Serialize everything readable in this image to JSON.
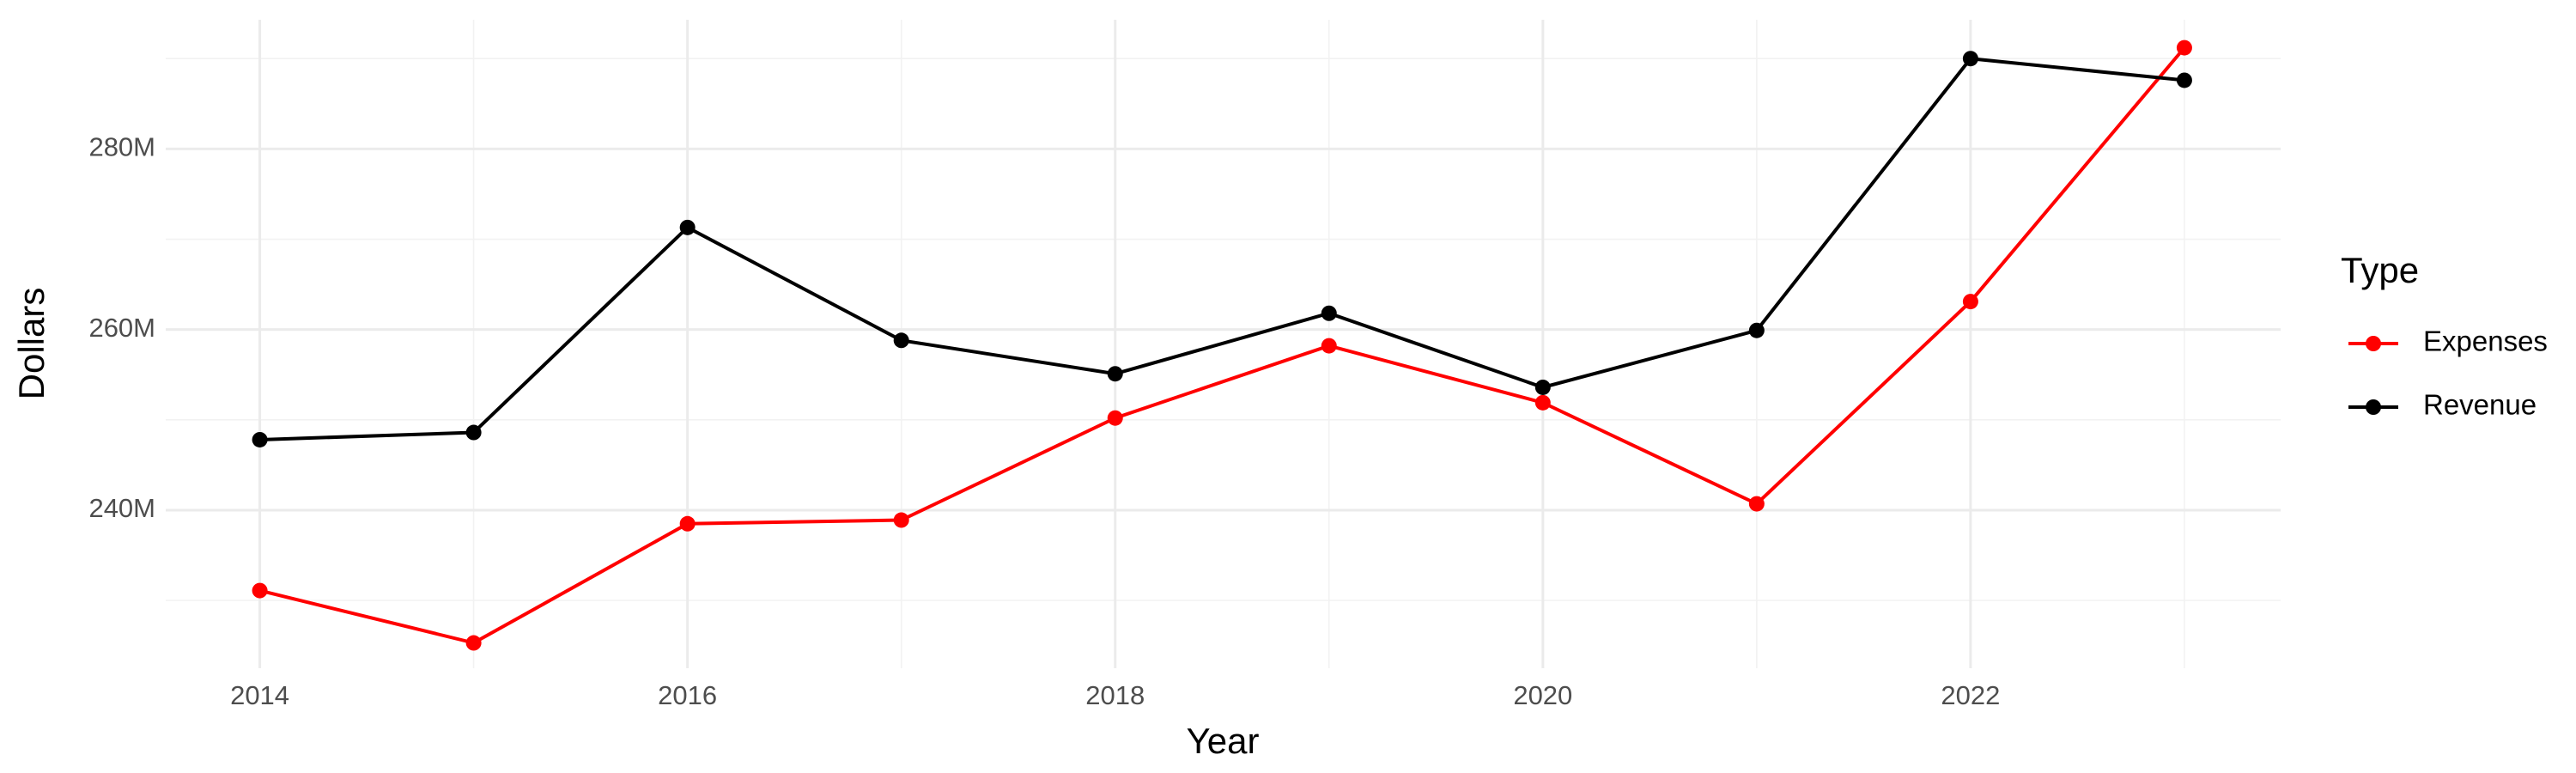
{
  "chart_data": {
    "type": "line",
    "x_label": "Year",
    "y_label": "Dollars",
    "x": [
      2014,
      2015,
      2016,
      2017,
      2018,
      2019,
      2020,
      2021,
      2022,
      2023
    ],
    "series": [
      {
        "name": "Expenses",
        "color": "#ff0000",
        "values": [
          231100000,
          225300000,
          238500000,
          238900000,
          250200000,
          258200000,
          251900000,
          240700000,
          263100000,
          291200000
        ]
      },
      {
        "name": "Revenue",
        "color": "#000000",
        "values": [
          247800000,
          248600000,
          271300000,
          258800000,
          255100000,
          261800000,
          253600000,
          259900000,
          290000000,
          287600000
        ]
      }
    ],
    "xlim": [
      2013.56,
      2023.45
    ],
    "xticks": [
      2014,
      2016,
      2018,
      2020,
      2022
    ],
    "ylim": [
      222500000,
      294300000
    ],
    "yticks": [
      {
        "value": 240000000,
        "label": "240M"
      },
      {
        "value": 260000000,
        "label": "260M"
      },
      {
        "value": 280000000,
        "label": "280M"
      }
    ],
    "grid": true,
    "legend_title": "Type",
    "legend_position": "right"
  }
}
